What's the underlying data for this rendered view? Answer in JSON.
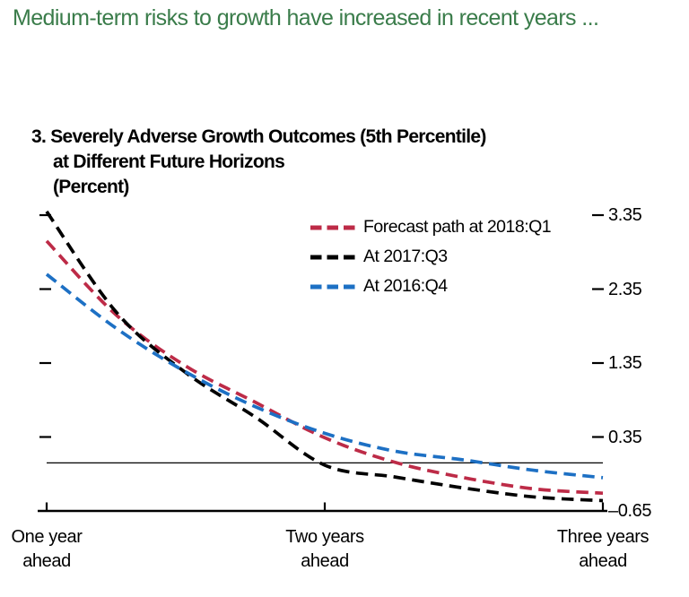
{
  "page": {
    "heading": "Medium-term risks to growth have increased in recent years ...",
    "heading_color": "#3a7c4a",
    "background": "#ffffff"
  },
  "chart_data": {
    "type": "line",
    "line_style": "dashed",
    "grid": false,
    "title_lines": [
      "3. Severely Adverse Growth Outcomes (5th Percentile)",
      "at Different Future Horizons",
      "(Percent)"
    ],
    "x_unit": "years ahead",
    "x": [
      1.0,
      1.25,
      1.5,
      1.75,
      2.0,
      2.25,
      2.5,
      2.75,
      3.0
    ],
    "series": [
      {
        "name": "Forecast path at 2018:Q1",
        "color": "#bd2b47",
        "values": [
          3.0,
          2.0,
          1.31,
          0.82,
          0.34,
          0.01,
          -0.2,
          -0.35,
          -0.41
        ]
      },
      {
        "name": "At 2017:Q3",
        "color": "#000000",
        "values": [
          3.4,
          2.04,
          1.22,
          0.62,
          -0.03,
          -0.19,
          -0.34,
          -0.46,
          -0.51
        ]
      },
      {
        "name": "At 2016:Q4",
        "color": "#1d70c4",
        "values": [
          2.55,
          1.82,
          1.23,
          0.76,
          0.4,
          0.16,
          0.04,
          -0.1,
          -0.2
        ]
      }
    ],
    "y_ticks": [
      {
        "label": "3.35",
        "value": 3.35
      },
      {
        "label": "2.35",
        "value": 2.35
      },
      {
        "label": "1.35",
        "value": 1.35
      },
      {
        "label": "0.35",
        "value": 0.35
      },
      {
        "label": "–0.65",
        "value": -0.65
      }
    ],
    "x_ticks": [
      {
        "lines": [
          "One year",
          "ahead"
        ],
        "value": 1
      },
      {
        "lines": [
          "Two years",
          "ahead"
        ],
        "value": 2
      },
      {
        "lines": [
          "Three years",
          "ahead"
        ],
        "value": 3
      }
    ],
    "ylim": [
      -0.65,
      3.35
    ],
    "xlim": [
      1,
      3
    ],
    "zero_line": 0,
    "legend_position": "inside-top-right",
    "axis_color": "#000000"
  }
}
